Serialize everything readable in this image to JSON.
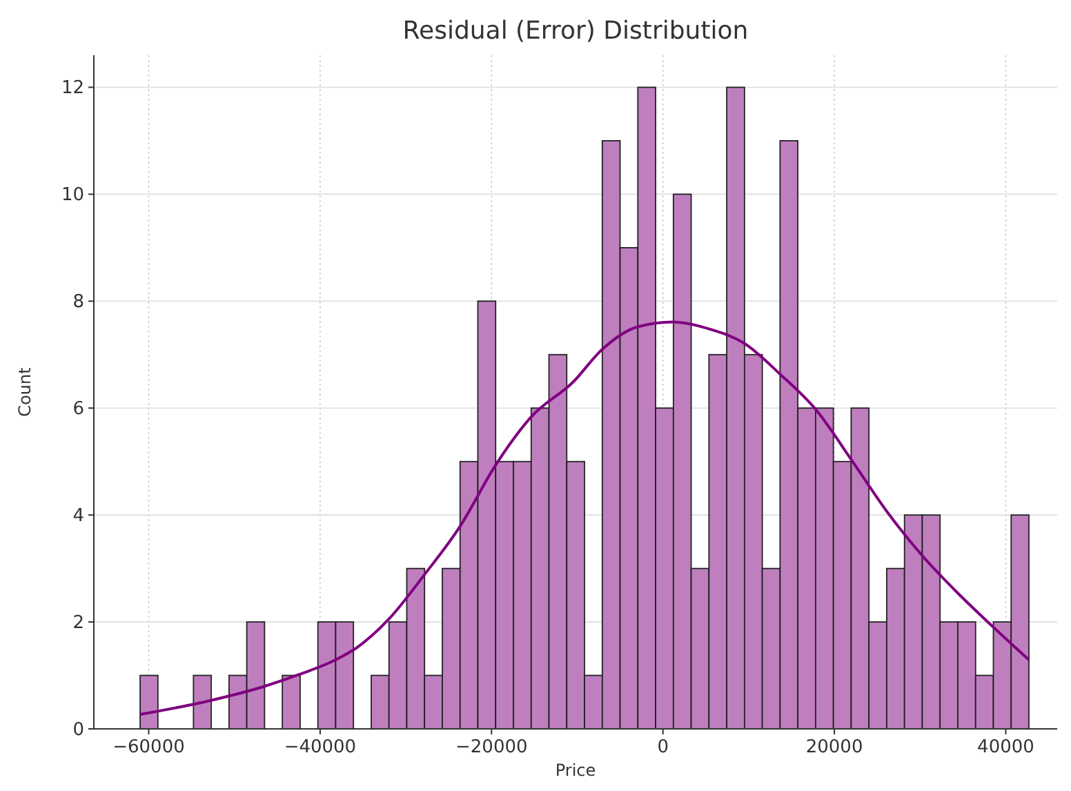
{
  "chart_data": {
    "type": "histogram",
    "title": "Residual (Error) Distribution",
    "xlabel": "Price",
    "ylabel": "Count",
    "bins": [
      -61000,
      -58926,
      -56852,
      -54778,
      -52704,
      -50630,
      -48556,
      -46482,
      -44408,
      -42334,
      -40260,
      -38186,
      -36112,
      -34038,
      -31964,
      -29890,
      -27816,
      -25742,
      -23668,
      -21594,
      -19520,
      -17446,
      -15372,
      -13298,
      -11224,
      -9150,
      -7076,
      -5002,
      -2928,
      -854,
      1220,
      3294,
      5368,
      7442,
      9516,
      11590,
      13664,
      15738,
      17812,
      19886,
      21960,
      24034,
      26108,
      28182,
      30256,
      32330,
      34404,
      36478,
      38552,
      40626,
      42700
    ],
    "values": [
      1,
      0,
      0,
      1,
      0,
      1,
      2,
      0,
      1,
      0,
      2,
      2,
      0,
      1,
      2,
      3,
      1,
      3,
      5,
      8,
      5,
      5,
      6,
      7,
      5,
      1,
      11,
      9,
      12,
      6,
      10,
      3,
      7,
      12,
      7,
      3,
      11,
      6,
      6,
      5,
      6,
      2,
      3,
      4,
      4,
      2,
      2,
      1,
      2,
      4
    ],
    "color": "#bf7fbf",
    "series": [
      {
        "type": "line",
        "color": "#800080",
        "x": [
          -61000,
          -52800,
          -46400,
          -42400,
          -38200,
          -35800,
          -32000,
          -27800,
          -23700,
          -19500,
          -15400,
          -10400,
          -7200,
          -2950,
          1150,
          5400,
          9500,
          13700,
          17900,
          22000,
          26200,
          30200,
          34400,
          38500,
          42700
        ],
        "values": [
          0.27,
          0.53,
          0.8,
          1.02,
          1.29,
          1.51,
          2.05,
          2.89,
          3.78,
          4.94,
          5.83,
          6.5,
          7.08,
          7.52,
          7.61,
          7.48,
          7.21,
          6.63,
          5.96,
          5.03,
          4.05,
          3.25,
          2.54,
          1.91,
          1.29
        ]
      }
    ],
    "xlim": [
      -66400,
      46000
    ],
    "ylim": [
      0,
      12.6
    ],
    "xticks": [
      -60000,
      -40000,
      -20000,
      0,
      20000,
      40000
    ],
    "yticks": [
      0,
      2,
      4,
      6,
      8,
      10,
      12
    ],
    "grid": true
  }
}
